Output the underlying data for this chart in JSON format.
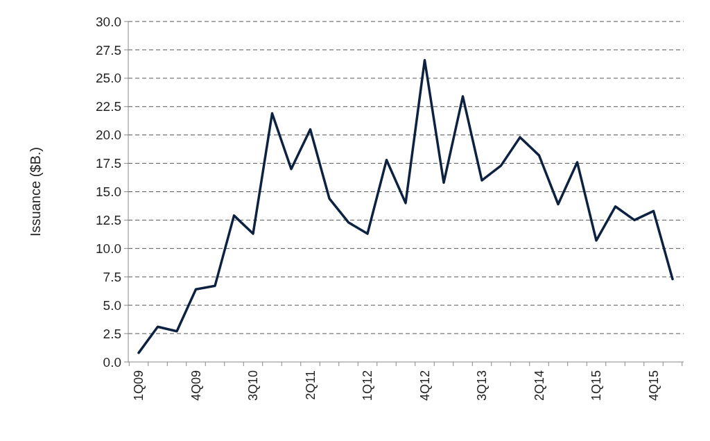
{
  "chart_data": {
    "type": "line",
    "ylabel": "Issuance ($B.)",
    "categories": [
      "1Q09",
      null,
      null,
      "4Q09",
      null,
      null,
      "3Q10",
      null,
      null,
      "2Q11",
      null,
      null,
      "1Q12",
      null,
      null,
      "4Q12",
      null,
      null,
      "3Q13",
      null,
      null,
      "2Q14",
      null,
      null,
      "1Q15",
      null,
      null,
      "4Q15",
      null
    ],
    "series": [
      {
        "color": "#0d2240",
        "values": [
          0.8,
          3.1,
          2.7,
          6.4,
          6.7,
          12.9,
          11.3,
          21.9,
          17.0,
          20.5,
          14.4,
          12.3,
          11.3,
          17.8,
          14.0,
          26.6,
          15.8,
          23.4,
          16.0,
          17.3,
          19.8,
          18.2,
          13.9,
          17.6,
          10.7,
          13.7,
          12.5,
          13.3,
          7.3
        ]
      }
    ],
    "ylim": [
      0,
      30
    ],
    "yticks": [
      {
        "value": 0,
        "label": "0.0"
      },
      {
        "value": 2.5,
        "label": "2.5"
      },
      {
        "value": 5,
        "label": "5.0"
      },
      {
        "value": 7.5,
        "label": "7.5"
      },
      {
        "value": 10,
        "label": "10.0"
      },
      {
        "value": 12.5,
        "label": "12.5"
      },
      {
        "value": 15,
        "label": "15.0"
      },
      {
        "value": 17.5,
        "label": "17.5"
      },
      {
        "value": 20,
        "label": "20.0"
      },
      {
        "value": 22.5,
        "label": "22.5"
      },
      {
        "value": 25,
        "label": "25.0"
      },
      {
        "value": 27.5,
        "label": "27.5"
      },
      {
        "value": 30,
        "label": "30.0"
      }
    ],
    "grid": "y",
    "marker": "none",
    "line_style": "solid"
  }
}
